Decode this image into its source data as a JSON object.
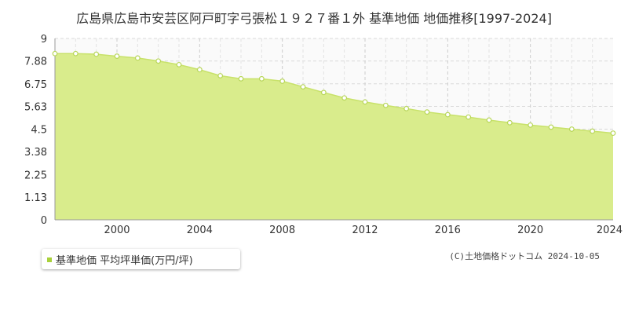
{
  "page": {
    "title": "広島県広島市安芸区阿戸町字弓張松１９２７番１外 基準地価 地価推移[1997-2024]",
    "footer_credit": "(C)土地価格ドットコム 2024-10-05"
  },
  "chart_data": {
    "type": "area",
    "title": "広島県広島市安芸区阿戸町字弓張松１９２７番１外 基準地価 地価推移[1997-2024]",
    "xlabel": "",
    "ylabel": "",
    "xlim": [
      1997,
      2024
    ],
    "ylim": [
      0,
      9
    ],
    "x_ticks": [
      2000,
      2004,
      2008,
      2012,
      2016,
      2020,
      2024
    ],
    "y_ticks": [
      0,
      1.13,
      2.25,
      3.38,
      4.5,
      5.63,
      6.75,
      7.88,
      9
    ],
    "grid": true,
    "legend_position": "bottom-left",
    "colors": {
      "fill": "#d9ec8c",
      "line": "#c8e26a",
      "marker_fill": "#ffffff",
      "marker_stroke": "#b8d65a",
      "legend_marker": "#a9d13b",
      "grid": "#d9d9d9",
      "axis": "#999999",
      "plot_bg_top": "#f8f8f8"
    },
    "series": [
      {
        "name": "基準地価 平均坪単価(万円/坪)",
        "x": [
          1997,
          1998,
          1999,
          2000,
          2001,
          2002,
          2003,
          2004,
          2005,
          2006,
          2007,
          2008,
          2009,
          2010,
          2011,
          2012,
          2013,
          2014,
          2015,
          2016,
          2017,
          2018,
          2019,
          2020,
          2021,
          2022,
          2023,
          2024
        ],
        "values": [
          8.25,
          8.25,
          8.22,
          8.12,
          8.03,
          7.88,
          7.7,
          7.45,
          7.15,
          7.0,
          7.0,
          6.88,
          6.6,
          6.32,
          6.05,
          5.85,
          5.68,
          5.52,
          5.35,
          5.22,
          5.1,
          4.95,
          4.82,
          4.7,
          4.6,
          4.5,
          4.4,
          4.3
        ]
      }
    ]
  }
}
